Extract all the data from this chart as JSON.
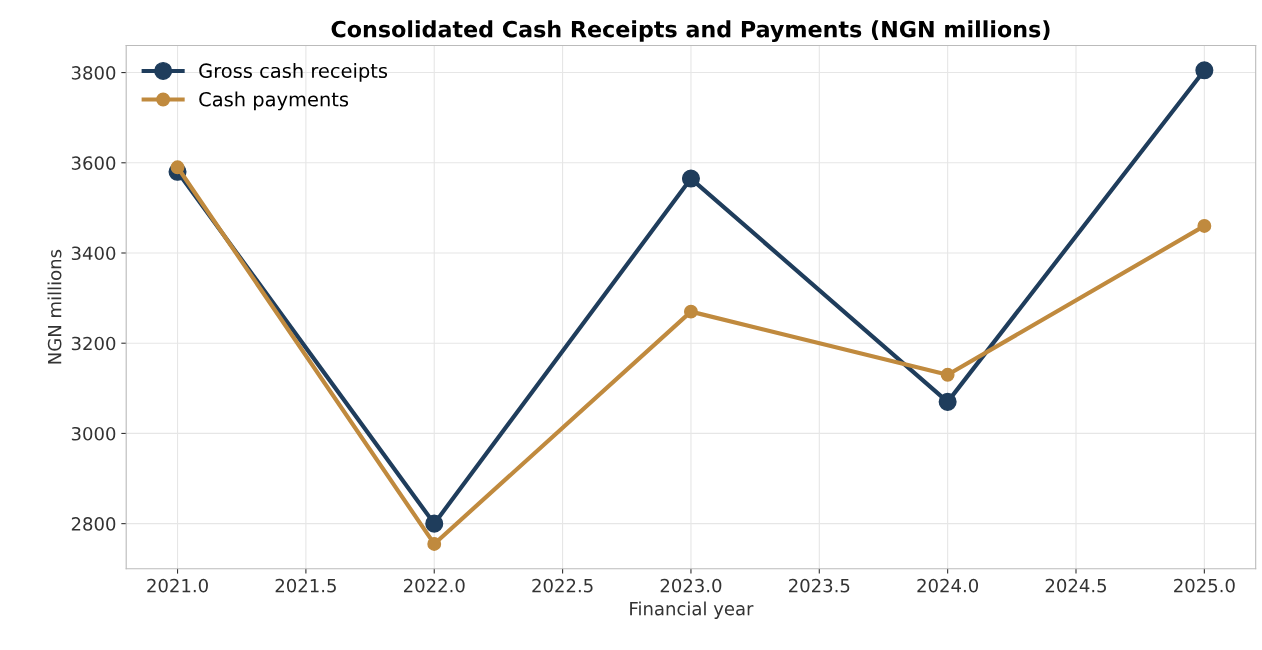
{
  "chart_data": {
    "type": "line",
    "title": "Consolidated Cash Receipts and Payments (NGN millions)",
    "xlabel": "Financial year",
    "ylabel": "NGN millions",
    "x": [
      2021,
      2022,
      2023,
      2024,
      2025
    ],
    "series": [
      {
        "name": "Gross cash receipts",
        "color": "#1f3d5c",
        "values": [
          3580,
          2800,
          3565,
          3070,
          3805
        ]
      },
      {
        "name": "Cash payments",
        "color": "#c08a3e",
        "values": [
          3590,
          2755,
          3270,
          3130,
          3460
        ]
      }
    ],
    "xlim": [
      2020.8,
      2025.2
    ],
    "xticks": [
      {
        "value": 2021,
        "label": "2021.0"
      },
      {
        "value": 2021.5,
        "label": "2021.5"
      },
      {
        "value": 2022,
        "label": "2022.0"
      },
      {
        "value": 2022.5,
        "label": "2022.5"
      },
      {
        "value": 2023,
        "label": "2023.0"
      },
      {
        "value": 2023.5,
        "label": "2023.5"
      },
      {
        "value": 2024,
        "label": "2024.0"
      },
      {
        "value": 2024.5,
        "label": "2024.5"
      },
      {
        "value": 2025,
        "label": "2025.0"
      }
    ],
    "ylim": [
      2700,
      3860
    ],
    "yticks": [
      2800,
      3000,
      3200,
      3400,
      3600,
      3800
    ],
    "grid": true,
    "legend": "top left",
    "marker": "circle",
    "line_style": "solid"
  }
}
